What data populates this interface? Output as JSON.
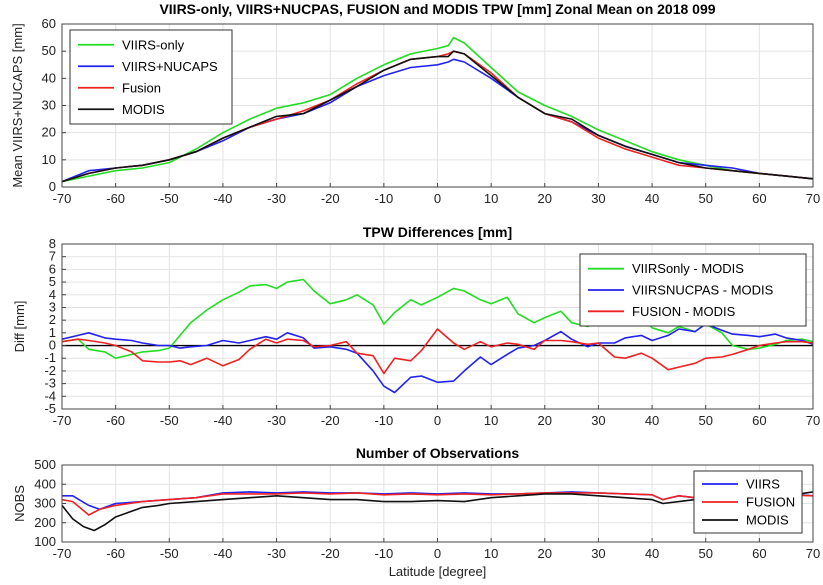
{
  "chart_data": [
    {
      "type": "line",
      "title": "VIIRS-only, VIIRS+NUCPAS, FUSION and MODIS TPW [mm] Zonal Mean on 2018 099",
      "xlabel": "",
      "ylabel": "Mean VIIRS+NUCAPS [mm]",
      "xlim": [
        -70,
        70
      ],
      "ylim": [
        0,
        60
      ],
      "xticks": [
        -70,
        -60,
        -50,
        -40,
        -30,
        -20,
        -10,
        0,
        10,
        20,
        30,
        40,
        50,
        60,
        70
      ],
      "yticks": [
        0,
        10,
        20,
        30,
        40,
        50,
        60
      ],
      "grid": true,
      "legend_position": "top-left",
      "series": [
        {
          "name": "VIIRS-only",
          "color": "#22dd22",
          "x": [
            -70,
            -65,
            -60,
            -55,
            -50,
            -45,
            -40,
            -35,
            -30,
            -25,
            -20,
            -15,
            -10,
            -5,
            0,
            2,
            3,
            5,
            10,
            15,
            20,
            25,
            30,
            35,
            40,
            45,
            50,
            55,
            60,
            65,
            70
          ],
          "y": [
            2,
            4,
            6,
            7,
            9,
            14,
            20,
            25,
            29,
            31,
            34,
            40,
            45,
            49,
            51,
            52,
            55,
            53,
            44,
            35,
            30,
            26,
            21,
            17,
            13,
            10,
            8,
            6,
            5,
            4,
            3
          ]
        },
        {
          "name": "VIIRS+NUCAPS",
          "color": "#2222ee",
          "x": [
            -70,
            -65,
            -60,
            -55,
            -50,
            -45,
            -40,
            -35,
            -30,
            -25,
            -20,
            -15,
            -10,
            -5,
            0,
            2,
            3,
            5,
            10,
            15,
            20,
            25,
            30,
            35,
            40,
            45,
            50,
            55,
            60,
            65,
            70
          ],
          "y": [
            2,
            6,
            7,
            8,
            10,
            13,
            17,
            22,
            25,
            27,
            31,
            37,
            41,
            44,
            45,
            46,
            47,
            46,
            40,
            33,
            27,
            24,
            19,
            15,
            12,
            9,
            8,
            7,
            5,
            4,
            3
          ]
        },
        {
          "name": "Fusion",
          "color": "#ee2222",
          "x": [
            -70,
            -65,
            -60,
            -55,
            -50,
            -45,
            -40,
            -35,
            -30,
            -25,
            -20,
            -15,
            -10,
            -5,
            0,
            2,
            3,
            5,
            10,
            15,
            20,
            25,
            30,
            35,
            40,
            45,
            50,
            55,
            60,
            65,
            70
          ],
          "y": [
            2,
            5,
            7,
            8,
            10,
            13,
            18,
            22,
            25,
            28,
            32,
            38,
            43,
            47,
            48,
            49,
            50,
            49,
            42,
            33,
            27,
            24,
            18,
            14,
            11,
            8,
            7,
            6,
            5,
            4,
            3
          ]
        },
        {
          "name": "MODIS",
          "color": "#111111",
          "x": [
            -70,
            -65,
            -60,
            -55,
            -50,
            -45,
            -40,
            -35,
            -30,
            -25,
            -20,
            -15,
            -10,
            -5,
            0,
            2,
            3,
            5,
            10,
            15,
            20,
            25,
            30,
            35,
            40,
            45,
            50,
            55,
            60,
            65,
            70
          ],
          "y": [
            2,
            5,
            7,
            8,
            10,
            13,
            18,
            22,
            26,
            27,
            32,
            37,
            43,
            47,
            48,
            48,
            50,
            49,
            41,
            33,
            27,
            25,
            19,
            15,
            12,
            9,
            7,
            6,
            5,
            4,
            3
          ]
        }
      ]
    },
    {
      "type": "line",
      "title": "TPW Differences [mm]",
      "xlabel": "",
      "ylabel": "Diff [mm]",
      "xlim": [
        -70,
        70
      ],
      "ylim": [
        -5,
        8
      ],
      "xticks": [
        -70,
        -60,
        -50,
        -40,
        -30,
        -20,
        -10,
        0,
        10,
        20,
        30,
        40,
        50,
        60,
        70
      ],
      "yticks": [
        -5,
        -4,
        -3,
        -2,
        -1,
        0,
        1,
        2,
        3,
        4,
        5,
        6,
        7,
        8
      ],
      "grid": true,
      "legend_position": "top-right",
      "series": [
        {
          "name": "VIIRSonly - MODIS",
          "color": "#22dd22",
          "x": [
            -70,
            -67,
            -65,
            -62,
            -60,
            -57,
            -55,
            -52,
            -50,
            -48,
            -46,
            -43,
            -40,
            -37,
            -35,
            -32,
            -30,
            -28,
            -25,
            -23,
            -20,
            -17,
            -15,
            -12,
            -10,
            -8,
            -5,
            -3,
            0,
            3,
            5,
            8,
            10,
            13,
            15,
            18,
            20,
            23,
            25,
            28,
            30,
            33,
            35,
            38,
            40,
            43,
            45,
            48,
            50,
            53,
            55,
            58,
            60,
            63,
            65,
            68,
            70
          ],
          "y": [
            0.3,
            0.5,
            -0.3,
            -0.5,
            -1,
            -0.7,
            -0.5,
            -0.4,
            -0.2,
            0.8,
            1.8,
            2.8,
            3.6,
            4.2,
            4.7,
            4.8,
            4.5,
            5.0,
            5.2,
            4.3,
            3.3,
            3.6,
            4.0,
            3.2,
            1.7,
            2.6,
            3.6,
            3.2,
            3.8,
            4.5,
            4.3,
            3.6,
            3.3,
            3.8,
            2.5,
            1.8,
            2.2,
            2.7,
            1.8,
            1.5,
            2.0,
            2.4,
            1.6,
            2.4,
            1.4,
            1.0,
            1.5,
            1.1,
            1.7,
            1.0,
            0,
            -0.3,
            -0.2,
            0.1,
            0.4,
            0.5,
            0.3
          ]
        },
        {
          "name": "VIIRSNUCPAS - MODIS",
          "color": "#2222ee",
          "x": [
            -70,
            -67,
            -65,
            -62,
            -60,
            -57,
            -55,
            -52,
            -50,
            -48,
            -46,
            -43,
            -40,
            -37,
            -35,
            -32,
            -30,
            -28,
            -25,
            -23,
            -20,
            -17,
            -15,
            -12,
            -10,
            -8,
            -5,
            -3,
            0,
            3,
            5,
            8,
            10,
            13,
            15,
            18,
            20,
            23,
            25,
            28,
            30,
            33,
            35,
            38,
            40,
            43,
            45,
            48,
            50,
            53,
            55,
            58,
            60,
            63,
            65,
            68,
            70
          ],
          "y": [
            0.5,
            0.8,
            1.0,
            0.6,
            0.5,
            0.4,
            0.2,
            0,
            0,
            -0.2,
            -0.1,
            0,
            0.4,
            0.2,
            0.4,
            0.7,
            0.5,
            1.0,
            0.6,
            -0.2,
            -0.1,
            -0.3,
            -0.6,
            -2.0,
            -3.2,
            -3.7,
            -2.5,
            -2.4,
            -2.9,
            -2.8,
            -2.0,
            -0.9,
            -1.5,
            -0.7,
            -0.2,
            0,
            0.4,
            1.1,
            0.5,
            -0.1,
            0.2,
            0.2,
            0.6,
            0.8,
            0.4,
            0.8,
            1.3,
            1.1,
            1.7,
            1.2,
            0.9,
            0.8,
            0.7,
            0.9,
            0.6,
            0.4,
            0.1
          ]
        },
        {
          "name": "FUSION - MODIS",
          "color": "#ee2222",
          "x": [
            -70,
            -67,
            -65,
            -62,
            -60,
            -57,
            -55,
            -52,
            -50,
            -48,
            -46,
            -43,
            -40,
            -37,
            -35,
            -32,
            -30,
            -28,
            -25,
            -23,
            -20,
            -17,
            -15,
            -12,
            -10,
            -8,
            -5,
            -3,
            0,
            3,
            5,
            8,
            10,
            13,
            15,
            18,
            20,
            23,
            25,
            28,
            30,
            33,
            35,
            38,
            40,
            43,
            45,
            48,
            50,
            53,
            55,
            58,
            60,
            63,
            65,
            68,
            70
          ],
          "y": [
            0.3,
            0.5,
            0.4,
            0.2,
            0,
            -0.5,
            -1.2,
            -1.3,
            -1.3,
            -1.2,
            -1.5,
            -1.0,
            -1.6,
            -1.1,
            -0.3,
            0.5,
            0.2,
            0.5,
            0.4,
            -0.1,
            0,
            0.3,
            -0.6,
            -0.8,
            -2.2,
            -1.0,
            -1.2,
            -0.4,
            1.3,
            0.2,
            -0.3,
            0.3,
            -0.1,
            0.2,
            0.1,
            -0.3,
            0.4,
            0.4,
            0.3,
            0.1,
            0.2,
            -0.9,
            -1.0,
            -0.6,
            -1.0,
            -1.9,
            -1.7,
            -1.4,
            -1.0,
            -0.9,
            -0.7,
            -0.3,
            0,
            0.2,
            0.3,
            0.3,
            0.2
          ]
        }
      ]
    },
    {
      "type": "line",
      "title": "Number of Observations",
      "xlabel": "Latitude [degree]",
      "ylabel": "NOBS",
      "xlim": [
        -70,
        70
      ],
      "ylim": [
        100,
        500
      ],
      "xticks": [
        -70,
        -60,
        -50,
        -40,
        -30,
        -20,
        -10,
        0,
        10,
        20,
        30,
        40,
        50,
        60,
        70
      ],
      "yticks": [
        100,
        200,
        300,
        400,
        500
      ],
      "grid": true,
      "legend_position": "right",
      "series": [
        {
          "name": "VIIRS",
          "color": "#2222ee",
          "x": [
            -70,
            -68,
            -65,
            -63,
            -60,
            -55,
            -50,
            -45,
            -40,
            -35,
            -30,
            -25,
            -20,
            -15,
            -10,
            -5,
            0,
            5,
            10,
            15,
            20,
            25,
            30,
            35,
            40,
            42,
            45,
            48,
            50,
            55,
            60,
            65,
            70
          ],
          "y": [
            340,
            340,
            290,
            270,
            300,
            310,
            320,
            330,
            355,
            360,
            355,
            360,
            355,
            355,
            350,
            355,
            350,
            355,
            350,
            350,
            355,
            360,
            355,
            350,
            345,
            320,
            340,
            330,
            340,
            350,
            340,
            350,
            340
          ]
        },
        {
          "name": "FUSION",
          "color": "#ee2222",
          "x": [
            -70,
            -68,
            -65,
            -63,
            -60,
            -55,
            -50,
            -45,
            -40,
            -35,
            -30,
            -25,
            -20,
            -15,
            -10,
            -5,
            0,
            5,
            10,
            15,
            20,
            25,
            30,
            35,
            40,
            42,
            45,
            48,
            50,
            55,
            60,
            65,
            70
          ],
          "y": [
            320,
            310,
            240,
            270,
            290,
            310,
            320,
            330,
            350,
            350,
            350,
            355,
            350,
            355,
            345,
            350,
            345,
            350,
            345,
            350,
            355,
            355,
            355,
            350,
            345,
            320,
            340,
            330,
            345,
            350,
            340,
            345,
            340
          ]
        },
        {
          "name": "MODIS",
          "color": "#111111",
          "x": [
            -70,
            -68,
            -66,
            -64,
            -62,
            -60,
            -58,
            -55,
            -52,
            -50,
            -45,
            -40,
            -35,
            -30,
            -25,
            -20,
            -15,
            -10,
            -5,
            0,
            5,
            10,
            15,
            20,
            25,
            30,
            35,
            40,
            42,
            45,
            48,
            50,
            55,
            60,
            65,
            70
          ],
          "y": [
            290,
            220,
            180,
            160,
            190,
            230,
            250,
            280,
            290,
            300,
            310,
            320,
            330,
            340,
            330,
            320,
            320,
            310,
            310,
            315,
            310,
            330,
            340,
            350,
            350,
            340,
            330,
            320,
            300,
            310,
            320,
            320,
            330,
            320,
            340,
            360
          ]
        }
      ]
    }
  ]
}
